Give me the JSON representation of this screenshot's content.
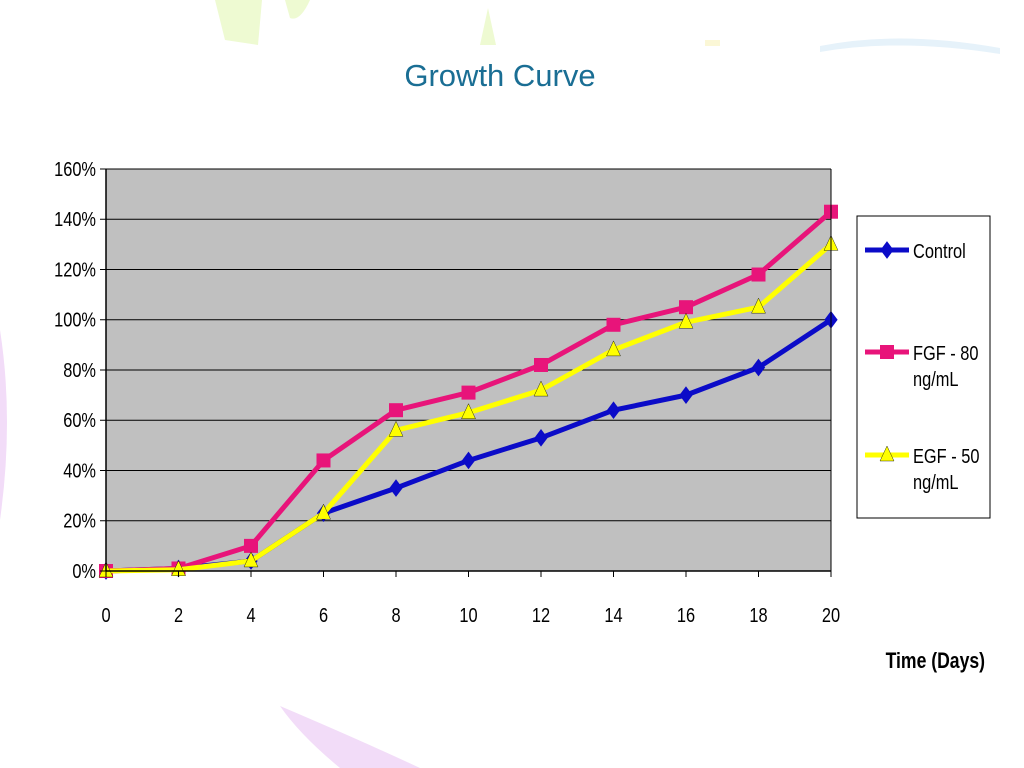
{
  "colors": {
    "plot_bg": "#c0c0c0",
    "grid": "#000000",
    "title": "#1a6e94",
    "deco_green": "#eefad2",
    "deco_purple": "#f2dcf8",
    "deco_blue": "#e6f2fa"
  },
  "chart_data": {
    "type": "line",
    "title": "Growth Curve",
    "xlabel": "Time (Days)",
    "ylabel": "",
    "x": [
      0,
      2,
      4,
      6,
      8,
      10,
      12,
      14,
      16,
      18,
      20
    ],
    "xlim": [
      0,
      20
    ],
    "ylim": [
      0,
      160
    ],
    "x_ticks": [
      "0",
      "2",
      "4",
      "6",
      "8",
      "10",
      "12",
      "14",
      "16",
      "18",
      "20"
    ],
    "y_ticks": [
      "0%",
      "20%",
      "40%",
      "60%",
      "80%",
      "100%",
      "120%",
      "140%",
      "160%"
    ],
    "grid": true,
    "legend_position": "right",
    "series": [
      {
        "name": "Control",
        "marker": "diamond",
        "color": "#0b0bc8",
        "values": [
          0,
          1,
          4,
          23,
          33,
          44,
          53,
          64,
          70,
          81,
          100
        ]
      },
      {
        "name": "FGF - 80 ng/mL",
        "marker": "square",
        "color": "#e8147a",
        "values": [
          0,
          1,
          10,
          44,
          64,
          71,
          82,
          98,
          105,
          118,
          143
        ]
      },
      {
        "name": "EGF - 50 ng/mL",
        "marker": "triangle",
        "color": "#ffff00",
        "values": [
          0,
          0.5,
          4,
          23,
          56,
          63,
          72,
          88,
          99,
          105,
          130
        ]
      }
    ]
  }
}
